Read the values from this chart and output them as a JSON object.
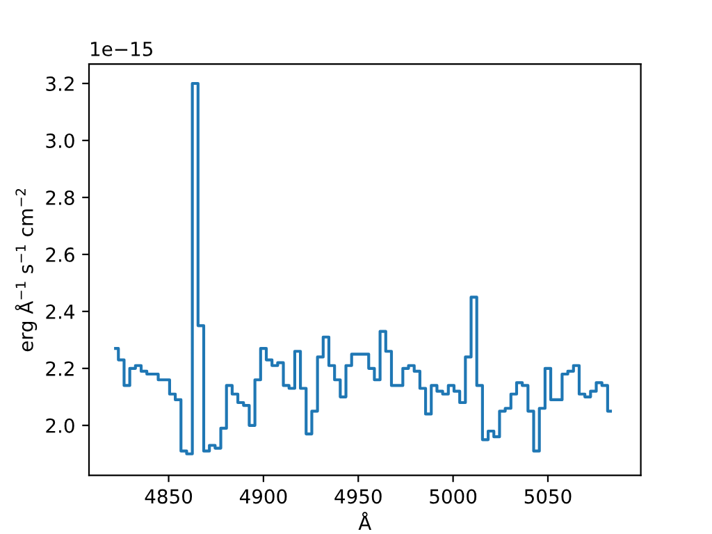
{
  "chart_data": {
    "type": "step",
    "xlabel": "Å",
    "ylabel": "erg Å$^{−1}$ s$^{−1}$ cm$^{−2}$",
    "annotations": [
      "1e−15"
    ],
    "x": [
      4822,
      4825,
      4828,
      4831,
      4834,
      4837,
      4840,
      4843,
      4846,
      4849,
      4852,
      4855,
      4858,
      4861,
      4864,
      4867,
      4870,
      4873,
      4876,
      4879,
      4882,
      4885,
      4888,
      4891,
      4894,
      4897,
      4900,
      4903,
      4906,
      4909,
      4912,
      4915,
      4918,
      4921,
      4924,
      4927,
      4930,
      4933,
      4936,
      4939,
      4942,
      4945,
      4948,
      4951,
      4954,
      4957,
      4960,
      4963,
      4966,
      4969,
      4972,
      4975,
      4978,
      4981,
      4984,
      4987,
      4990,
      4993,
      4996,
      4999,
      5002,
      5005,
      5008,
      5011,
      5014,
      5017,
      5020,
      5023,
      5026,
      5029,
      5032,
      5035,
      5038,
      5041,
      5044,
      5047,
      5050,
      5053,
      5056,
      5059,
      5062,
      5065,
      5068,
      5071,
      5074,
      5077,
      5080,
      5083
    ],
    "series": [
      {
        "color": "#1f77b4",
        "values": [
          2.27,
          2.23,
          2.14,
          2.2,
          2.21,
          2.19,
          2.18,
          2.18,
          2.16,
          2.16,
          2.11,
          2.09,
          1.91,
          1.9,
          3.2,
          2.35,
          1.91,
          1.93,
          1.92,
          1.99,
          2.14,
          2.11,
          2.08,
          2.07,
          2.0,
          2.16,
          2.27,
          2.23,
          2.21,
          2.22,
          2.14,
          2.13,
          2.26,
          2.13,
          1.97,
          2.05,
          2.24,
          2.31,
          2.21,
          2.16,
          2.1,
          2.21,
          2.25,
          2.25,
          2.25,
          2.2,
          2.16,
          2.33,
          2.26,
          2.14,
          2.14,
          2.2,
          2.21,
          2.19,
          2.13,
          2.04,
          2.14,
          2.12,
          2.11,
          2.14,
          2.12,
          2.08,
          2.24,
          2.45,
          2.14,
          1.95,
          1.98,
          1.96,
          2.05,
          2.06,
          2.11,
          2.15,
          2.14,
          2.05,
          1.91,
          2.06,
          2.2,
          2.09,
          2.09,
          2.18,
          2.19,
          2.21,
          2.11,
          2.1,
          2.12,
          2.15,
          2.14,
          2.05
        ]
      }
    ],
    "xlim": [
      4808,
      5099
    ],
    "ylim": [
      1.825,
      3.268
    ],
    "xticks": [
      4850,
      4900,
      4950,
      5000,
      5050
    ],
    "yticks": [
      {
        "value": 2,
        "label": "2.0"
      },
      2.2,
      2.4,
      2.6,
      2.8,
      {
        "value": 3,
        "label": "3.0"
      },
      3.2
    ],
    "grid": false,
    "legend": false,
    "line_style": "solid",
    "marker": "none"
  }
}
